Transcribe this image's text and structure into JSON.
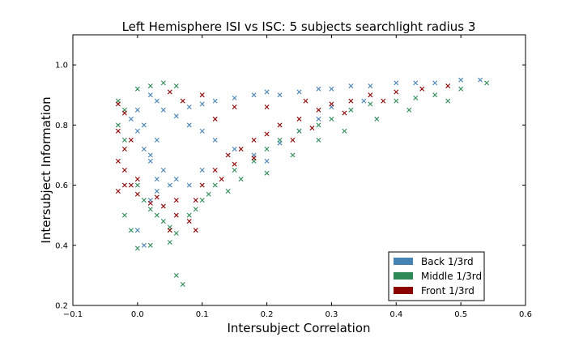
{
  "chart_data": {
    "type": "scatter",
    "title": "Left Hemisphere ISI vs ISC: 5 subjects searchlight radius 3",
    "xlabel": "Intersubject Correlation",
    "ylabel": "Intersubject Information",
    "xlim": [
      -0.1,
      0.6
    ],
    "ylim": [
      0.2,
      1.1
    ],
    "xticks": [
      -0.1,
      0.0,
      0.1,
      0.2,
      0.3,
      0.4,
      0.5,
      0.6
    ],
    "yticks": [
      0.2,
      0.4,
      0.6,
      0.8,
      1.0
    ],
    "xtick_labels": [
      "−0.1",
      "0.0",
      "0.1",
      "0.2",
      "0.3",
      "0.4",
      "0.5",
      "0.6"
    ],
    "ytick_labels": [
      "0.2",
      "0.4",
      "0.6",
      "0.8",
      "1.0"
    ],
    "grid": false,
    "legend_position": "lower-right",
    "marker": "x",
    "series": [
      {
        "name": "Back 1/3rd",
        "color": "#4682b4",
        "points": [
          [
            0.02,
            0.9
          ],
          [
            0.03,
            0.88
          ],
          [
            0.04,
            0.85
          ],
          [
            0.01,
            0.8
          ],
          [
            0.03,
            0.75
          ],
          [
            0.02,
            0.7
          ],
          [
            0.04,
            0.65
          ],
          [
            0.03,
            0.62
          ],
          [
            0.05,
            0.6
          ],
          [
            0.06,
            0.83
          ],
          [
            0.08,
            0.86
          ],
          [
            0.1,
            0.87
          ],
          [
            0.12,
            0.88
          ],
          [
            0.15,
            0.89
          ],
          [
            0.18,
            0.9
          ],
          [
            0.2,
            0.91
          ],
          [
            0.22,
            0.9
          ],
          [
            0.25,
            0.91
          ],
          [
            0.28,
            0.92
          ],
          [
            0.3,
            0.92
          ],
          [
            0.33,
            0.93
          ],
          [
            0.36,
            0.93
          ],
          [
            0.4,
            0.94
          ],
          [
            0.43,
            0.94
          ],
          [
            0.46,
            0.94
          ],
          [
            0.5,
            0.95
          ],
          [
            0.53,
            0.95
          ],
          [
            0.0,
            0.85
          ],
          [
            -0.01,
            0.82
          ],
          [
            0.0,
            0.78
          ],
          [
            0.01,
            0.72
          ],
          [
            0.02,
            0.68
          ],
          [
            0.08,
            0.8
          ],
          [
            0.1,
            0.78
          ],
          [
            0.12,
            0.75
          ],
          [
            0.15,
            0.72
          ],
          [
            0.18,
            0.7
          ],
          [
            0.2,
            0.68
          ],
          [
            0.22,
            0.74
          ],
          [
            0.25,
            0.78
          ],
          [
            0.28,
            0.82
          ],
          [
            0.3,
            0.86
          ],
          [
            0.35,
            0.88
          ],
          [
            0.1,
            0.65
          ],
          [
            0.08,
            0.6
          ],
          [
            0.0,
            0.45
          ],
          [
            0.01,
            0.4
          ],
          [
            0.02,
            0.55
          ],
          [
            0.03,
            0.58
          ],
          [
            0.06,
            0.62
          ]
        ]
      },
      {
        "name": "Middle 1/3rd",
        "color": "#2e8b57",
        "points": [
          [
            0.0,
            0.92
          ],
          [
            0.02,
            0.93
          ],
          [
            0.04,
            0.94
          ],
          [
            0.06,
            0.93
          ],
          [
            -0.03,
            0.88
          ],
          [
            -0.02,
            0.85
          ],
          [
            -0.03,
            0.8
          ],
          [
            -0.02,
            0.75
          ],
          [
            0.0,
            0.6
          ],
          [
            0.01,
            0.55
          ],
          [
            0.02,
            0.52
          ],
          [
            0.03,
            0.5
          ],
          [
            0.04,
            0.48
          ],
          [
            0.05,
            0.46
          ],
          [
            0.06,
            0.44
          ],
          [
            0.08,
            0.5
          ],
          [
            0.1,
            0.55
          ],
          [
            0.12,
            0.6
          ],
          [
            0.15,
            0.65
          ],
          [
            0.18,
            0.68
          ],
          [
            0.2,
            0.72
          ],
          [
            0.22,
            0.75
          ],
          [
            0.25,
            0.78
          ],
          [
            0.28,
            0.8
          ],
          [
            0.3,
            0.82
          ],
          [
            0.33,
            0.85
          ],
          [
            0.36,
            0.87
          ],
          [
            0.4,
            0.88
          ],
          [
            0.43,
            0.89
          ],
          [
            0.46,
            0.9
          ],
          [
            0.5,
            0.92
          ],
          [
            0.54,
            0.94
          ],
          [
            0.0,
            0.39
          ],
          [
            0.02,
            0.4
          ],
          [
            0.05,
            0.41
          ],
          [
            0.07,
            0.27
          ],
          [
            0.06,
            0.3
          ],
          [
            0.14,
            0.58
          ],
          [
            0.16,
            0.62
          ],
          [
            0.2,
            0.64
          ],
          [
            0.24,
            0.7
          ],
          [
            0.28,
            0.75
          ],
          [
            0.32,
            0.78
          ],
          [
            -0.01,
            0.45
          ],
          [
            -0.02,
            0.5
          ],
          [
            0.09,
            0.52
          ],
          [
            0.11,
            0.57
          ],
          [
            0.37,
            0.82
          ],
          [
            0.42,
            0.85
          ],
          [
            0.48,
            0.88
          ]
        ]
      },
      {
        "name": "Front 1/3rd",
        "color": "#8b0000",
        "points": [
          [
            -0.03,
            0.87
          ],
          [
            -0.02,
            0.84
          ],
          [
            -0.03,
            0.78
          ],
          [
            -0.02,
            0.72
          ],
          [
            -0.03,
            0.68
          ],
          [
            -0.02,
            0.65
          ],
          [
            -0.01,
            0.6
          ],
          [
            0.0,
            0.57
          ],
          [
            0.02,
            0.54
          ],
          [
            0.04,
            0.53
          ],
          [
            0.06,
            0.5
          ],
          [
            0.08,
            0.48
          ],
          [
            0.09,
            0.55
          ],
          [
            0.1,
            0.6
          ],
          [
            0.12,
            0.65
          ],
          [
            0.14,
            0.7
          ],
          [
            0.16,
            0.72
          ],
          [
            0.18,
            0.75
          ],
          [
            0.2,
            0.77
          ],
          [
            0.22,
            0.8
          ],
          [
            0.25,
            0.82
          ],
          [
            0.28,
            0.85
          ],
          [
            0.3,
            0.87
          ],
          [
            0.33,
            0.88
          ],
          [
            0.36,
            0.9
          ],
          [
            0.4,
            0.91
          ],
          [
            0.44,
            0.92
          ],
          [
            0.48,
            0.93
          ],
          [
            -0.03,
            0.58
          ],
          [
            -0.02,
            0.6
          ],
          [
            0.05,
            0.45
          ],
          [
            0.09,
            0.45
          ],
          [
            0.06,
            0.55
          ],
          [
            0.15,
            0.67
          ],
          [
            0.18,
            0.69
          ],
          [
            0.24,
            0.75
          ],
          [
            0.27,
            0.79
          ],
          [
            0.32,
            0.84
          ],
          [
            0.12,
            0.82
          ],
          [
            0.15,
            0.86
          ],
          [
            0.1,
            0.9
          ],
          [
            0.07,
            0.88
          ],
          [
            0.05,
            0.91
          ],
          [
            0.2,
            0.86
          ],
          [
            0.26,
            0.88
          ],
          [
            -0.01,
            0.75
          ],
          [
            0.0,
            0.62
          ],
          [
            0.03,
            0.56
          ],
          [
            0.13,
            0.62
          ],
          [
            0.38,
            0.88
          ]
        ]
      }
    ]
  }
}
